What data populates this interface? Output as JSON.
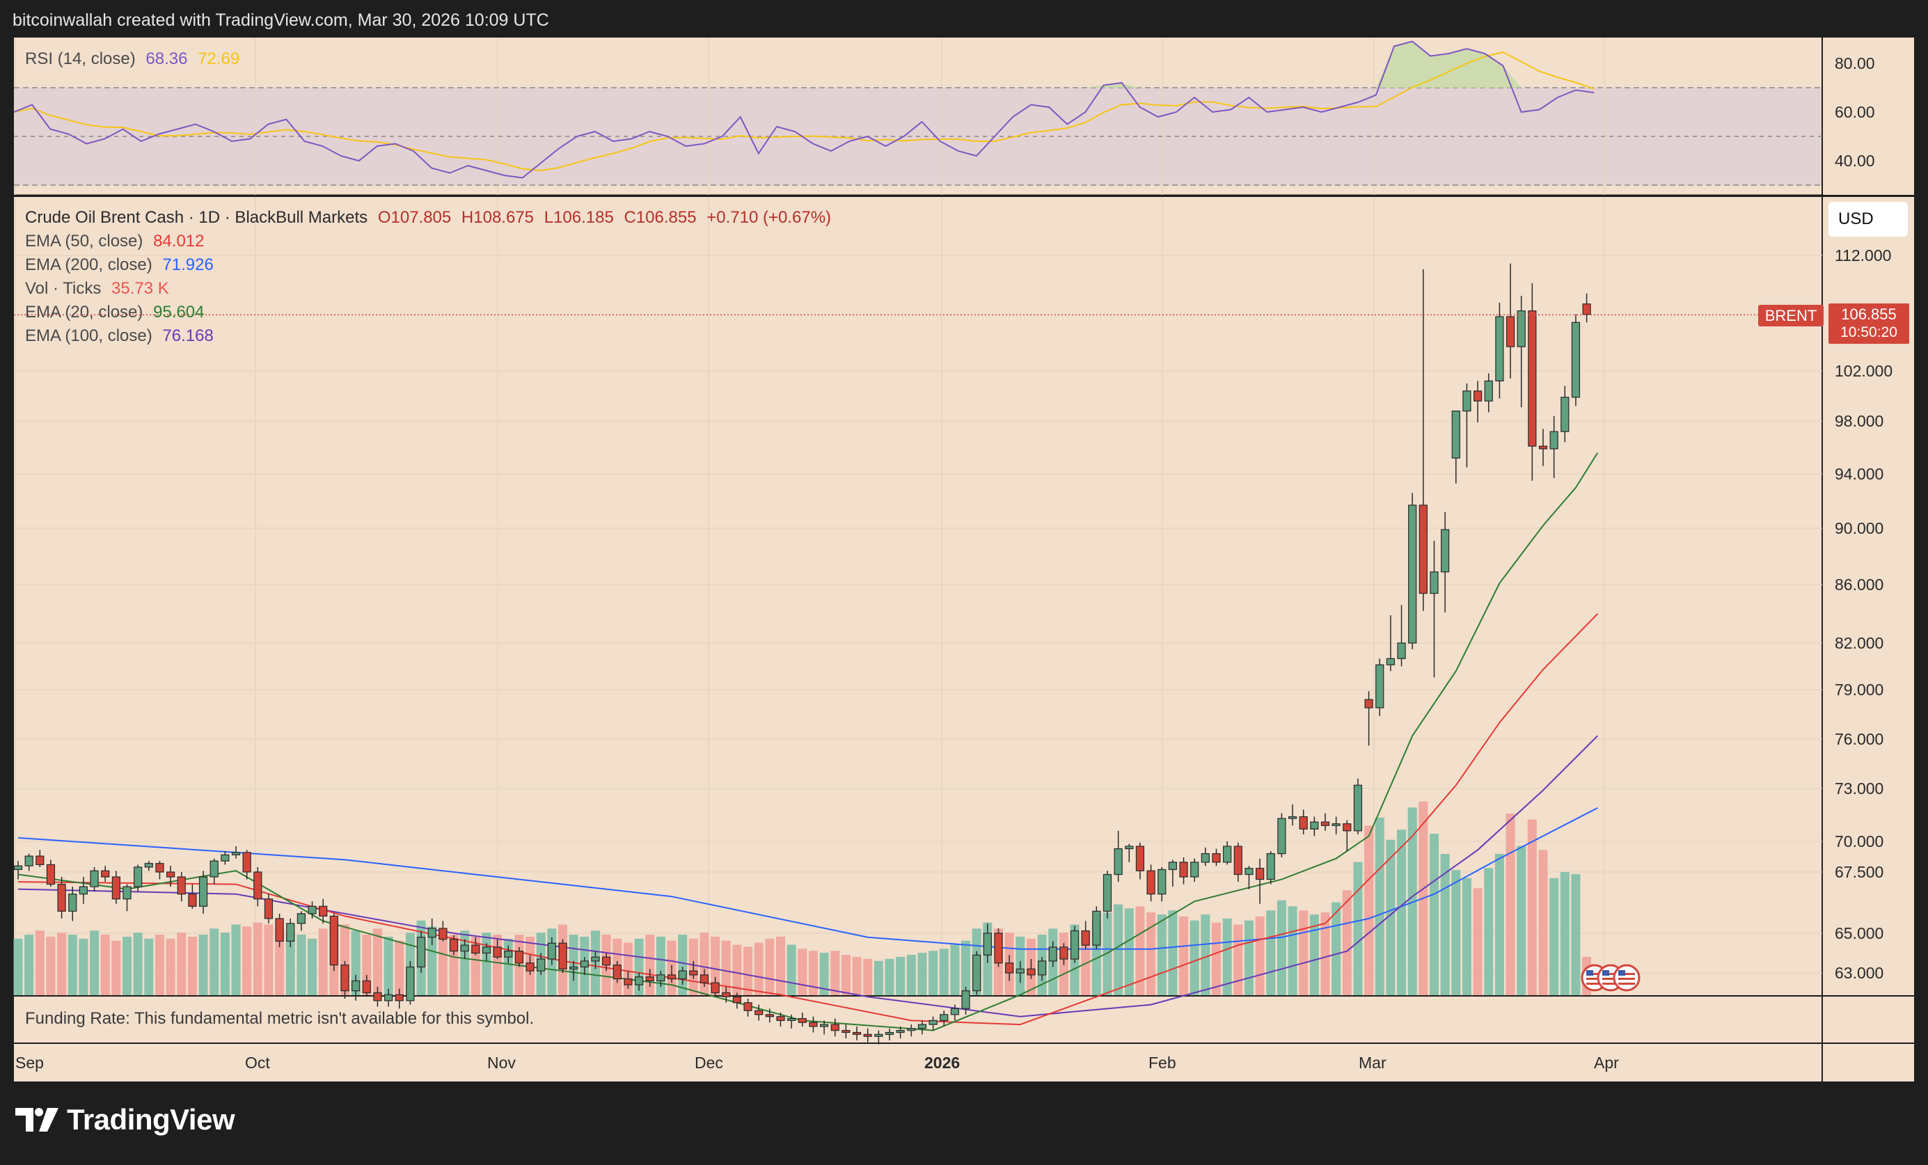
{
  "header": {
    "text": "bitcoinwallah created with TradingView.com, Mar 30, 2026 10:09 UTC"
  },
  "rsi": {
    "label": "RSI (14, close)",
    "value": "68.36",
    "ma_value": "72.69",
    "value_color": "#7e57c2",
    "ma_color": "#f5c518",
    "axis_ticks": [
      "80.00",
      "60.00",
      "40.00"
    ],
    "bands": [
      70,
      50,
      30
    ],
    "series": [
      60,
      63,
      53,
      51,
      47,
      49,
      53,
      48,
      51,
      53,
      55,
      52,
      48,
      49,
      55,
      57,
      48,
      46,
      42,
      40,
      46,
      47,
      44,
      37,
      35,
      38,
      36,
      34,
      33,
      39,
      45,
      50,
      52,
      48,
      49,
      52,
      50,
      46,
      47,
      50,
      58,
      43,
      54,
      52,
      47,
      44,
      48,
      50,
      46,
      50,
      56,
      48,
      44,
      42,
      50,
      58,
      63,
      62,
      55,
      60,
      71,
      72,
      62,
      58,
      60,
      66,
      60,
      61,
      66,
      60,
      61,
      62,
      60,
      62,
      64,
      67,
      87,
      89,
      83,
      84,
      86,
      84,
      79,
      60,
      61,
      66,
      69,
      68
    ]
  },
  "legend": {
    "symbol": "Crude Oil Brent Cash · 1D · BlackBull Markets",
    "ohlc": {
      "open": "O107.805",
      "high": "H108.675",
      "low": "L106.185",
      "close": "C106.855",
      "change": "+0.710 (+0.67%)"
    },
    "indicators": [
      {
        "label": "EMA (50, close)",
        "value": "84.012",
        "color": "#e53935"
      },
      {
        "label": "EMA (200, close)",
        "value": "71.926",
        "color": "#2962ff"
      },
      {
        "label": "Vol · Ticks",
        "value": "35.73 K",
        "color": "#ef5350"
      },
      {
        "label": "EMA (20, close)",
        "value": "95.604",
        "color": "#2e7d32"
      },
      {
        "label": "EMA (100, close)",
        "value": "76.168",
        "color": "#673ab7"
      }
    ]
  },
  "price_axis": {
    "currency_button": "USD",
    "ticks": [
      "112.000",
      "102.000",
      "98.000",
      "94.000",
      "90.000",
      "86.000",
      "82.000",
      "79.000",
      "76.000",
      "73.000",
      "70.000",
      "67.500",
      "65.000",
      "63.000"
    ],
    "symbol_tag": "BRENT",
    "last_price": "106.855",
    "countdown": "10:50:20"
  },
  "time_axis": {
    "labels": [
      {
        "text": "Sep",
        "bold": false
      },
      {
        "text": "Oct",
        "bold": false
      },
      {
        "text": "Nov",
        "bold": false
      },
      {
        "text": "Dec",
        "bold": false
      },
      {
        "text": "2026",
        "bold": true
      },
      {
        "text": "Feb",
        "bold": false
      },
      {
        "text": "Mar",
        "bold": false
      },
      {
        "text": "Apr",
        "bold": false
      }
    ]
  },
  "funding": {
    "text": "Funding Rate: This fundamental metric isn't available for this symbol."
  },
  "brand": {
    "name": "TradingView"
  },
  "colors": {
    "up": "#5fa07f",
    "down": "#d2463a",
    "chart_bg": "#f2dfcc",
    "frame": "#1e1e1e",
    "rsi_band": "#e3d2d3"
  },
  "chart_data": {
    "type": "candlestick",
    "x_labels": [
      "Sep",
      "Oct",
      "Nov",
      "Dec",
      "2026",
      "Feb",
      "Mar",
      "Apr"
    ],
    "candles": [
      [
        67.7,
        68.4,
        67.2,
        68.0,
        0.28
      ],
      [
        68.0,
        69.0,
        67.6,
        68.8,
        0.3
      ],
      [
        68.8,
        69.3,
        67.9,
        68.1,
        0.32
      ],
      [
        68.1,
        68.5,
        66.9,
        67.0,
        0.29
      ],
      [
        67.0,
        67.3,
        65.6,
        65.9,
        0.31
      ],
      [
        65.9,
        66.9,
        65.5,
        66.6,
        0.3
      ],
      [
        66.6,
        67.3,
        66.2,
        66.9,
        0.28
      ],
      [
        66.9,
        67.9,
        66.7,
        67.6,
        0.32
      ],
      [
        67.6,
        68.0,
        67.1,
        67.3,
        0.3
      ],
      [
        67.3,
        67.6,
        66.2,
        66.4,
        0.27
      ],
      [
        66.4,
        67.0,
        65.9,
        66.9,
        0.29
      ],
      [
        66.9,
        68.1,
        66.7,
        67.9,
        0.31
      ],
      [
        67.9,
        68.4,
        67.6,
        68.2,
        0.28
      ],
      [
        68.2,
        68.4,
        67.2,
        67.5,
        0.3
      ],
      [
        67.5,
        68.0,
        66.9,
        67.3,
        0.28
      ],
      [
        67.3,
        67.5,
        66.3,
        66.6,
        0.31
      ],
      [
        66.6,
        67.0,
        66.0,
        66.1,
        0.29
      ],
      [
        66.1,
        67.6,
        65.8,
        67.3,
        0.3
      ],
      [
        67.3,
        68.6,
        67.0,
        68.4,
        0.33
      ],
      [
        68.4,
        69.2,
        68.1,
        68.9,
        0.31
      ],
      [
        68.9,
        69.6,
        68.6,
        69.1,
        0.35
      ],
      [
        69.1,
        69.3,
        67.2,
        67.5,
        0.34
      ],
      [
        67.5,
        67.9,
        66.1,
        66.4,
        0.36
      ],
      [
        66.4,
        66.6,
        65.4,
        65.6,
        0.35
      ],
      [
        65.6,
        65.8,
        64.3,
        64.6,
        0.33
      ],
      [
        64.6,
        65.6,
        64.3,
        65.4,
        0.31
      ],
      [
        65.4,
        65.9,
        65.1,
        65.8,
        0.3
      ],
      [
        65.8,
        66.3,
        65.6,
        66.1,
        0.28
      ],
      [
        66.1,
        66.4,
        65.4,
        65.7,
        0.33
      ],
      [
        65.7,
        65.8,
        63.1,
        63.4,
        0.36
      ],
      [
        63.4,
        63.6,
        61.7,
        62.1,
        0.35
      ],
      [
        62.1,
        62.9,
        61.6,
        62.6,
        0.32
      ],
      [
        62.6,
        62.9,
        61.8,
        62.0,
        0.3
      ],
      [
        62.0,
        62.3,
        61.3,
        61.6,
        0.33
      ],
      [
        61.6,
        62.2,
        61.3,
        61.9,
        0.29
      ],
      [
        61.9,
        62.2,
        61.2,
        61.6,
        0.27
      ],
      [
        61.6,
        63.6,
        61.4,
        63.3,
        0.31
      ],
      [
        63.3,
        65.1,
        63.0,
        64.8,
        0.37
      ],
      [
        64.8,
        65.6,
        64.4,
        65.2,
        0.34
      ],
      [
        65.2,
        65.5,
        64.6,
        64.7,
        0.33
      ],
      [
        64.7,
        64.9,
        63.9,
        64.1,
        0.3
      ],
      [
        64.1,
        64.7,
        63.7,
        64.4,
        0.32
      ],
      [
        64.4,
        64.8,
        63.9,
        64.0,
        0.29
      ],
      [
        64.0,
        64.5,
        63.6,
        64.3,
        0.31
      ],
      [
        64.3,
        64.7,
        63.7,
        63.8,
        0.3
      ],
      [
        63.8,
        64.4,
        63.5,
        64.1,
        0.28
      ],
      [
        64.1,
        64.3,
        63.3,
        63.5,
        0.3
      ],
      [
        63.5,
        63.9,
        62.9,
        63.1,
        0.29
      ],
      [
        63.1,
        64.0,
        62.9,
        63.7,
        0.31
      ],
      [
        63.7,
        64.8,
        63.4,
        64.5,
        0.33
      ],
      [
        64.5,
        64.7,
        63.0,
        63.2,
        0.35
      ],
      [
        63.2,
        63.6,
        62.6,
        63.3,
        0.3
      ],
      [
        63.3,
        63.8,
        62.9,
        63.6,
        0.29
      ],
      [
        63.6,
        64.1,
        63.2,
        63.8,
        0.32
      ],
      [
        63.8,
        64.0,
        63.1,
        63.4,
        0.3
      ],
      [
        63.4,
        63.6,
        62.5,
        62.7,
        0.28
      ],
      [
        62.7,
        63.1,
        62.2,
        62.4,
        0.26
      ],
      [
        62.4,
        63.0,
        62.1,
        62.8,
        0.28
      ],
      [
        62.8,
        63.2,
        62.3,
        62.6,
        0.3
      ],
      [
        62.6,
        63.1,
        62.3,
        62.9,
        0.29
      ],
      [
        62.9,
        63.4,
        62.5,
        62.7,
        0.27
      ],
      [
        62.7,
        63.3,
        62.4,
        63.1,
        0.3
      ],
      [
        63.1,
        63.6,
        62.7,
        62.9,
        0.28
      ],
      [
        62.9,
        63.2,
        62.3,
        62.5,
        0.31
      ],
      [
        62.5,
        62.8,
        61.8,
        62.0,
        0.29
      ],
      [
        62.0,
        62.3,
        61.5,
        61.8,
        0.27
      ],
      [
        61.8,
        62.0,
        61.2,
        61.5,
        0.25
      ],
      [
        61.5,
        61.7,
        60.8,
        61.1,
        0.24
      ],
      [
        61.1,
        61.4,
        60.6,
        60.9,
        0.26
      ],
      [
        60.9,
        61.2,
        60.5,
        60.8,
        0.28
      ],
      [
        60.8,
        61.0,
        60.3,
        60.6,
        0.29
      ],
      [
        60.6,
        60.9,
        60.2,
        60.7,
        0.25
      ],
      [
        60.7,
        61.0,
        60.3,
        60.5,
        0.23
      ],
      [
        60.5,
        60.8,
        60.0,
        60.3,
        0.22
      ],
      [
        60.3,
        60.6,
        59.9,
        60.4,
        0.21
      ],
      [
        60.4,
        60.7,
        59.8,
        60.1,
        0.22
      ],
      [
        60.1,
        60.4,
        59.7,
        60.0,
        0.2
      ],
      [
        60.0,
        60.3,
        59.6,
        59.9,
        0.19
      ],
      [
        59.9,
        60.2,
        59.5,
        59.8,
        0.18
      ],
      [
        59.8,
        60.1,
        59.4,
        59.9,
        0.17
      ],
      [
        59.9,
        60.2,
        59.6,
        60.0,
        0.18
      ],
      [
        60.0,
        60.3,
        59.7,
        60.1,
        0.19
      ],
      [
        60.1,
        60.4,
        59.8,
        60.2,
        0.2
      ],
      [
        60.2,
        60.6,
        59.9,
        60.4,
        0.21
      ],
      [
        60.4,
        60.8,
        60.1,
        60.6,
        0.22
      ],
      [
        60.6,
        61.1,
        60.3,
        60.9,
        0.23
      ],
      [
        60.9,
        61.4,
        60.6,
        61.2,
        0.25
      ],
      [
        61.2,
        62.3,
        60.9,
        62.1,
        0.27
      ],
      [
        62.1,
        64.1,
        61.9,
        63.9,
        0.33
      ],
      [
        63.9,
        65.4,
        63.5,
        65.0,
        0.36
      ],
      [
        65.0,
        65.2,
        63.3,
        63.5,
        0.33
      ],
      [
        63.5,
        63.9,
        62.6,
        63.0,
        0.31
      ],
      [
        63.0,
        63.6,
        62.5,
        63.2,
        0.29
      ],
      [
        63.2,
        63.7,
        62.7,
        62.9,
        0.28
      ],
      [
        62.9,
        63.8,
        62.6,
        63.6,
        0.3
      ],
      [
        63.6,
        64.6,
        63.3,
        64.3,
        0.33
      ],
      [
        64.3,
        64.5,
        63.4,
        63.7,
        0.31
      ],
      [
        63.7,
        65.3,
        63.5,
        65.1,
        0.35
      ],
      [
        65.1,
        65.5,
        64.2,
        64.4,
        0.32
      ],
      [
        64.4,
        66.1,
        64.2,
        65.9,
        0.37
      ],
      [
        65.9,
        67.6,
        65.6,
        67.4,
        0.41
      ],
      [
        67.4,
        70.6,
        67.1,
        69.4,
        0.45
      ],
      [
        69.4,
        69.8,
        68.3,
        69.6,
        0.43
      ],
      [
        69.6,
        69.9,
        67.2,
        67.6,
        0.44
      ],
      [
        67.6,
        68.1,
        66.3,
        66.6,
        0.41
      ],
      [
        66.6,
        67.9,
        66.3,
        67.7,
        0.4
      ],
      [
        67.7,
        68.5,
        66.9,
        68.3,
        0.42
      ],
      [
        68.3,
        68.7,
        67.0,
        67.3,
        0.39
      ],
      [
        67.3,
        68.6,
        67.1,
        68.3,
        0.37
      ],
      [
        68.3,
        69.5,
        68.0,
        69.0,
        0.4
      ],
      [
        69.0,
        69.4,
        68.0,
        68.3,
        0.36
      ],
      [
        68.3,
        70.0,
        68.1,
        69.6,
        0.38
      ],
      [
        69.6,
        69.9,
        67.1,
        67.4,
        0.35
      ],
      [
        67.4,
        68.0,
        66.8,
        67.8,
        0.37
      ],
      [
        67.8,
        68.6,
        66.2,
        67.2,
        0.39
      ],
      [
        67.2,
        69.2,
        67.0,
        69.0,
        0.42
      ],
      [
        69.0,
        71.6,
        68.7,
        71.3,
        0.47
      ],
      [
        71.3,
        72.1,
        70.9,
        71.4,
        0.44
      ],
      [
        71.4,
        71.8,
        70.4,
        70.7,
        0.42
      ],
      [
        70.7,
        71.4,
        70.3,
        71.1,
        0.4
      ],
      [
        71.1,
        71.6,
        70.6,
        70.9,
        0.41
      ],
      [
        70.9,
        71.4,
        70.4,
        71.0,
        0.46
      ],
      [
        71.0,
        71.2,
        69.2,
        70.6,
        0.52
      ],
      [
        70.6,
        73.6,
        70.4,
        73.2,
        0.66
      ],
      [
        78.4,
        78.9,
        75.6,
        77.9,
        0.84
      ],
      [
        77.9,
        81.0,
        77.4,
        80.6,
        0.88
      ],
      [
        80.6,
        83.9,
        80.2,
        81.0,
        0.77
      ],
      [
        81.0,
        84.6,
        80.5,
        82.0,
        0.82
      ],
      [
        82.0,
        92.6,
        81.6,
        91.7,
        0.93
      ],
      [
        91.7,
        113.2,
        84.2,
        85.4,
        0.96
      ],
      [
        85.4,
        89.1,
        79.8,
        86.9,
        0.8
      ],
      [
        86.9,
        91.2,
        84.1,
        89.9,
        0.7
      ],
      [
        95.2,
        98.4,
        93.3,
        98.8,
        0.62
      ],
      [
        98.8,
        101.0,
        94.5,
        100.4,
        0.58
      ],
      [
        100.4,
        101.2,
        97.9,
        99.6,
        0.53
      ],
      [
        99.6,
        101.8,
        98.7,
        101.2,
        0.63
      ],
      [
        101.2,
        107.9,
        99.8,
        106.7,
        0.7
      ],
      [
        106.7,
        112.7,
        101.4,
        104.1,
        0.9
      ],
      [
        104.1,
        108.5,
        99.1,
        107.2,
        0.74
      ],
      [
        107.2,
        109.6,
        93.5,
        96.1,
        0.87
      ],
      [
        96.1,
        97.4,
        94.6,
        95.9,
        0.72
      ],
      [
        95.9,
        98.4,
        93.7,
        97.2,
        0.58
      ],
      [
        97.2,
        100.8,
        96.4,
        99.9,
        0.61
      ],
      [
        99.9,
        106.9,
        99.2,
        106.2,
        0.6
      ],
      [
        107.8,
        108.7,
        106.2,
        106.9,
        0.19
      ]
    ],
    "ema20": [
      [
        0,
        67.4
      ],
      [
        10,
        66.8
      ],
      [
        20,
        67.6
      ],
      [
        28,
        65.5
      ],
      [
        40,
        63.8
      ],
      [
        60,
        62.4
      ],
      [
        72,
        60.6
      ],
      [
        84,
        60.1
      ],
      [
        92,
        61.9
      ],
      [
        100,
        64.0
      ],
      [
        108,
        66.3
      ],
      [
        116,
        67.2
      ],
      [
        121,
        68.6
      ],
      [
        124,
        70.3
      ],
      [
        128,
        76.2
      ],
      [
        132,
        80.2
      ],
      [
        136,
        86.1
      ],
      [
        140,
        90.2
      ],
      [
        143,
        93.0
      ],
      [
        145,
        95.6
      ]
    ],
    "ema50": [
      [
        0,
        67.1
      ],
      [
        20,
        67.0
      ],
      [
        30,
        65.7
      ],
      [
        50,
        63.6
      ],
      [
        70,
        61.9
      ],
      [
        82,
        60.6
      ],
      [
        92,
        60.4
      ],
      [
        104,
        62.8
      ],
      [
        112,
        64.4
      ],
      [
        120,
        65.4
      ],
      [
        124,
        67.2
      ],
      [
        128,
        70.3
      ],
      [
        132,
        73.2
      ],
      [
        136,
        77.0
      ],
      [
        140,
        80.3
      ],
      [
        145,
        84.0
      ]
    ],
    "ema100": [
      [
        0,
        66.8
      ],
      [
        20,
        66.6
      ],
      [
        40,
        65.0
      ],
      [
        60,
        63.6
      ],
      [
        78,
        61.8
      ],
      [
        92,
        60.8
      ],
      [
        104,
        61.4
      ],
      [
        116,
        63.2
      ],
      [
        122,
        64.1
      ],
      [
        128,
        66.5
      ],
      [
        134,
        69.3
      ],
      [
        140,
        72.9
      ],
      [
        145,
        76.2
      ]
    ],
    "ema200": [
      [
        0,
        70.2
      ],
      [
        30,
        68.5
      ],
      [
        60,
        66.5
      ],
      [
        78,
        64.8
      ],
      [
        92,
        64.2
      ],
      [
        104,
        64.2
      ],
      [
        116,
        64.8
      ],
      [
        124,
        65.6
      ],
      [
        130,
        66.6
      ],
      [
        136,
        68.6
      ],
      [
        145,
        71.9
      ]
    ],
    "ylim": [
      61.2,
      115.0
    ]
  }
}
